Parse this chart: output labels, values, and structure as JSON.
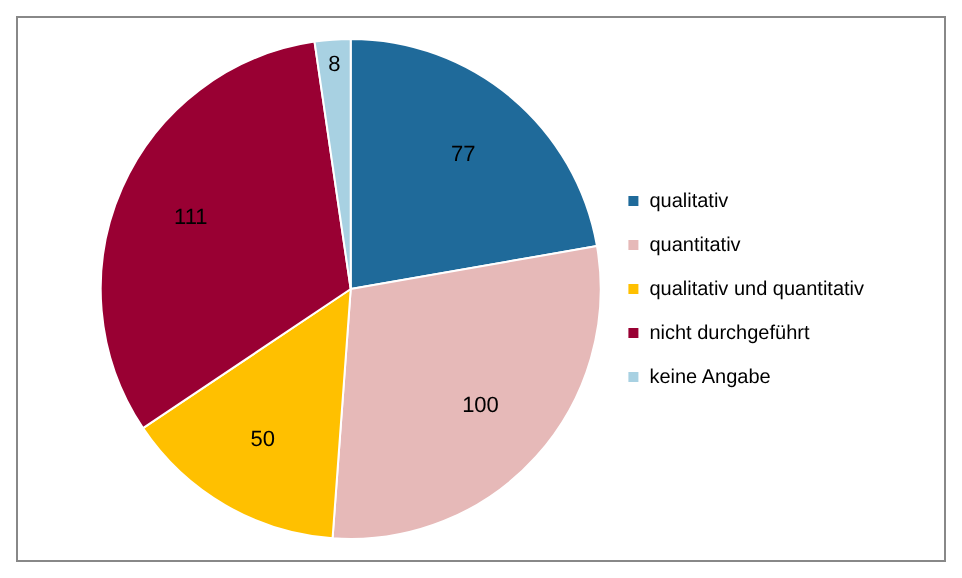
{
  "chart_data": {
    "type": "pie",
    "categories": [
      "qualitativ",
      "quantitativ",
      "qualitativ und quantitativ",
      "nicht durchgeführt",
      "keine Angabe"
    ],
    "values": [
      77,
      100,
      50,
      111,
      8
    ],
    "colors": [
      "#1f6a9a",
      "#e6b9b8",
      "#ffc000",
      "#990033",
      "#a8d1e2"
    ],
    "data_labels": true,
    "legend": "right"
  }
}
